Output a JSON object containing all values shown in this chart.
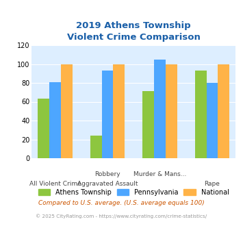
{
  "title_line1": "2019 Athens Township",
  "title_line2": "Violent Crime Comparison",
  "cat_labels_top": [
    "",
    "Robbery",
    "Murder & Mans...",
    ""
  ],
  "cat_labels_bottom": [
    "All Violent Crime",
    "Aggravated Assault",
    "",
    "Rape"
  ],
  "athens_values": [
    63,
    24,
    71,
    93
  ],
  "pennsylvania_values": [
    81,
    93,
    105,
    80
  ],
  "national_values": [
    100,
    100,
    100,
    100
  ],
  "athens_color": "#8dc63f",
  "pennsylvania_color": "#4da6ff",
  "national_color": "#ffb347",
  "ylim": [
    0,
    120
  ],
  "yticks": [
    0,
    20,
    40,
    60,
    80,
    100,
    120
  ],
  "legend_labels": [
    "Athens Township",
    "Pennsylvania",
    "National"
  ],
  "footnote1": "Compared to U.S. average. (U.S. average equals 100)",
  "footnote2": "© 2025 CityRating.com - https://www.cityrating.com/crime-statistics/",
  "bg_color": "#ddeeff",
  "title_color": "#1a5fa8",
  "footnote1_color": "#cc5500",
  "footnote2_color": "#999999"
}
